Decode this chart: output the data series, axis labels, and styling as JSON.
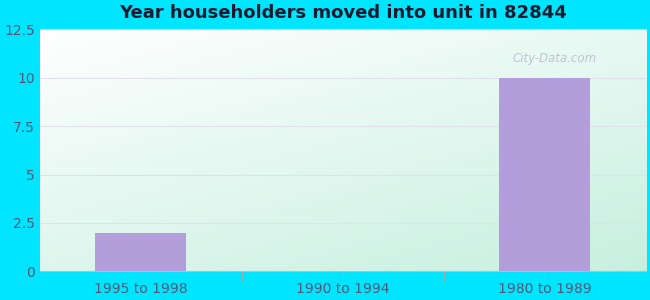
{
  "title": "Year householders moved into unit in 82844",
  "categories": [
    "1995 to 1998",
    "1990 to 1994",
    "1980 to 1989"
  ],
  "values": [
    2.0,
    0.0,
    10.0
  ],
  "bar_color": "#b39ddb",
  "ylim": [
    0,
    12.5
  ],
  "yticks": [
    0,
    2.5,
    5,
    7.5,
    10,
    12.5
  ],
  "background_outer": "#00e5ff",
  "grad_top_left": "#c8efd8",
  "grad_bottom_right": "#e8f8f0",
  "title_fontsize": 13,
  "title_color": "#1a1a2e",
  "tick_fontsize": 10,
  "tick_color": "#555577",
  "bar_width": 0.45,
  "watermark_text": "City-Data.com",
  "watermark_color": "#bbbbcc",
  "grid_color": "#e0e0ee"
}
